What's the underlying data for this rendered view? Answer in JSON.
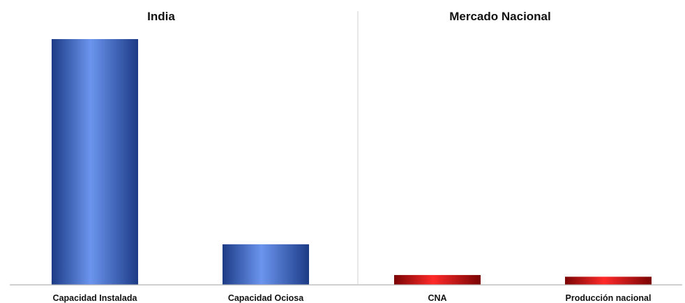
{
  "chart_data": {
    "type": "bar",
    "groups": [
      {
        "title": "India",
        "categories": [
          "Capacidad Instalada",
          "Capacidad Ociosa"
        ],
        "values": [
          100,
          16.5
        ],
        "color": "#3a64c0"
      },
      {
        "title": "Mercado Nacional",
        "categories": [
          "CNA",
          "Producción nacional"
        ],
        "values": [
          4,
          3.3
        ],
        "color": "#d91010"
      }
    ],
    "xlabel": "",
    "ylabel": "",
    "ylim": [
      0,
      100
    ],
    "grid": false,
    "legend": "none"
  }
}
